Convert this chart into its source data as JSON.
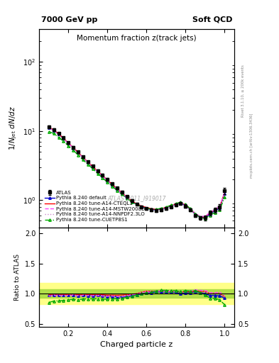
{
  "title_left": "7000 GeV pp",
  "title_right": "Soft QCD",
  "plot_title": "Momentum fraction z(track jets)",
  "ylabel_main": "$1/N_\\mathrm{jet}\\ dN/dz$",
  "ylabel_ratio": "Ratio to ATLAS",
  "xlabel": "Charged particle z",
  "annotation": "ATLAS_2011_I919017",
  "right_label_top": "Rivet 3.1.10, ≥ 200k events",
  "right_label_bot": "mcplots.cern.ch [arXiv:1306.3436]",
  "z_values": [
    0.1,
    0.125,
    0.15,
    0.175,
    0.2,
    0.225,
    0.25,
    0.275,
    0.3,
    0.325,
    0.35,
    0.375,
    0.4,
    0.425,
    0.45,
    0.475,
    0.5,
    0.525,
    0.55,
    0.575,
    0.6,
    0.625,
    0.65,
    0.675,
    0.7,
    0.725,
    0.75,
    0.775,
    0.8,
    0.825,
    0.85,
    0.875,
    0.9,
    0.925,
    0.95,
    0.975,
    1.0
  ],
  "atlas_values": [
    11.5,
    10.5,
    9.2,
    8.0,
    6.8,
    5.8,
    5.0,
    4.2,
    3.6,
    3.1,
    2.65,
    2.3,
    2.0,
    1.72,
    1.5,
    1.3,
    1.12,
    0.98,
    0.88,
    0.8,
    0.75,
    0.72,
    0.7,
    0.72,
    0.75,
    0.8,
    0.85,
    0.9,
    0.82,
    0.72,
    0.6,
    0.55,
    0.55,
    0.65,
    0.72,
    0.8,
    1.35
  ],
  "atlas_errors": [
    0.5,
    0.4,
    0.35,
    0.3,
    0.25,
    0.2,
    0.18,
    0.15,
    0.12,
    0.1,
    0.09,
    0.08,
    0.07,
    0.06,
    0.05,
    0.05,
    0.04,
    0.04,
    0.03,
    0.03,
    0.03,
    0.03,
    0.03,
    0.03,
    0.03,
    0.03,
    0.04,
    0.04,
    0.04,
    0.04,
    0.03,
    0.03,
    0.04,
    0.05,
    0.06,
    0.08,
    0.15
  ],
  "pythia_default_values": [
    11.2,
    10.3,
    9.0,
    7.8,
    6.65,
    5.7,
    4.85,
    4.1,
    3.5,
    3.0,
    2.58,
    2.22,
    1.92,
    1.65,
    1.42,
    1.23,
    1.07,
    0.95,
    0.86,
    0.8,
    0.76,
    0.73,
    0.72,
    0.74,
    0.77,
    0.82,
    0.87,
    0.9,
    0.83,
    0.73,
    0.62,
    0.56,
    0.55,
    0.63,
    0.7,
    0.77,
    1.25
  ],
  "pythia_cteq_values": [
    11.3,
    10.4,
    9.1,
    7.9,
    6.7,
    5.75,
    4.9,
    4.15,
    3.55,
    3.05,
    2.62,
    2.26,
    1.95,
    1.68,
    1.46,
    1.27,
    1.1,
    0.97,
    0.88,
    0.82,
    0.78,
    0.75,
    0.73,
    0.75,
    0.78,
    0.83,
    0.88,
    0.92,
    0.85,
    0.74,
    0.63,
    0.57,
    0.57,
    0.65,
    0.72,
    0.8,
    1.28
  ],
  "pythia_mstw_values": [
    11.0,
    10.2,
    8.9,
    7.75,
    6.6,
    5.65,
    4.82,
    4.08,
    3.48,
    2.99,
    2.56,
    2.21,
    1.91,
    1.65,
    1.43,
    1.24,
    1.08,
    0.96,
    0.87,
    0.81,
    0.77,
    0.74,
    0.73,
    0.75,
    0.78,
    0.83,
    0.88,
    0.92,
    0.85,
    0.75,
    0.64,
    0.58,
    0.58,
    0.66,
    0.73,
    0.82,
    1.3
  ],
  "pythia_nnpdf_values": [
    11.1,
    10.25,
    8.95,
    7.78,
    6.62,
    5.68,
    4.84,
    4.1,
    3.5,
    3.01,
    2.58,
    2.22,
    1.92,
    1.66,
    1.44,
    1.25,
    1.09,
    0.97,
    0.88,
    0.82,
    0.78,
    0.75,
    0.73,
    0.75,
    0.78,
    0.83,
    0.88,
    0.92,
    0.85,
    0.75,
    0.64,
    0.58,
    0.57,
    0.65,
    0.72,
    0.8,
    1.27
  ],
  "pythia_cuetp_values": [
    9.8,
    9.2,
    8.1,
    7.1,
    6.1,
    5.25,
    4.48,
    3.82,
    3.28,
    2.83,
    2.42,
    2.09,
    1.81,
    1.57,
    1.37,
    1.2,
    1.05,
    0.94,
    0.86,
    0.8,
    0.76,
    0.74,
    0.73,
    0.76,
    0.79,
    0.84,
    0.89,
    0.93,
    0.86,
    0.75,
    0.63,
    0.56,
    0.54,
    0.6,
    0.66,
    0.72,
    1.1
  ],
  "atlas_color": "#000000",
  "default_color": "#0000cc",
  "cteq_color": "#ff0000",
  "mstw_color": "#ff44ff",
  "nnpdf_color": "#cc88cc",
  "cuetp_color": "#00aa00",
  "bg_color": "#ffffff",
  "ylim_main": [
    0.4,
    300
  ],
  "ylim_ratio": [
    0.45,
    2.1
  ],
  "xlim": [
    0.05,
    1.05
  ]
}
